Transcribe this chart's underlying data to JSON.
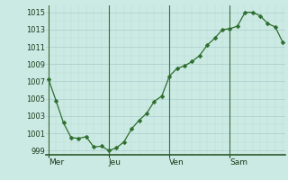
{
  "x_labels": [
    "Mer",
    "Jeu",
    "Ven",
    "Sam"
  ],
  "x_tick_positions": [
    0,
    8,
    16,
    24
  ],
  "ylim": [
    998.5,
    1015.8
  ],
  "yticks": [
    999,
    1001,
    1003,
    1005,
    1007,
    1009,
    1011,
    1013,
    1015
  ],
  "background_color": "#cceae4",
  "grid_color_major": "#aacccc",
  "grid_color_minor": "#bbd9d5",
  "line_color": "#2d6e2d",
  "marker_color": "#2d6e2d",
  "x_values": [
    0,
    1,
    2,
    3,
    4,
    5,
    6,
    7,
    8,
    9,
    10,
    11,
    12,
    13,
    14,
    15,
    16,
    17,
    18,
    19,
    20,
    21,
    22,
    23,
    24,
    25,
    26,
    27,
    28,
    29,
    30,
    31
  ],
  "y_values": [
    1007.3,
    1004.8,
    1002.2,
    1000.5,
    1000.4,
    1000.6,
    999.4,
    999.5,
    999.0,
    999.3,
    1000.0,
    1001.5,
    1002.5,
    1003.3,
    1004.7,
    1005.3,
    1007.6,
    1008.5,
    1008.8,
    1009.3,
    1010.0,
    1011.2,
    1012.0,
    1013.0,
    1013.1,
    1013.4,
    1015.0,
    1015.0,
    1014.6,
    1013.7,
    1013.3,
    1011.5
  ],
  "x_vline_positions": [
    0,
    8,
    16,
    24
  ],
  "marker_size": 2.5,
  "xlim": [
    -0.3,
    31.3
  ]
}
